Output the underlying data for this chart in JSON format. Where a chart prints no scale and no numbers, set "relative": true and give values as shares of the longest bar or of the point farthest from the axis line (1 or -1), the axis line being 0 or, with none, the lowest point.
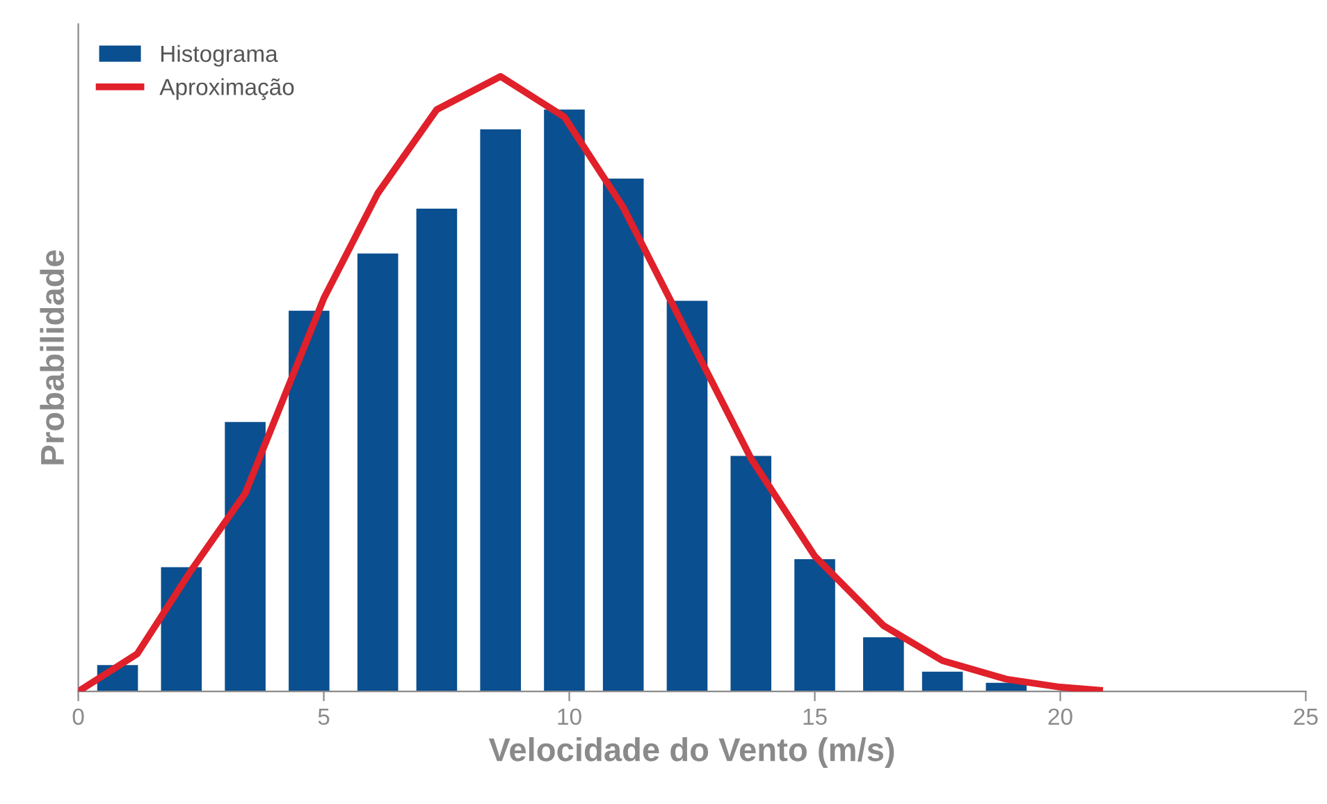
{
  "chart_data": {
    "type": "bar",
    "relative": true,
    "xlabel": "Velocidade do Vento (m/s)",
    "ylabel": "Probabilidade",
    "xlim": [
      0,
      25
    ],
    "xticks": [
      0,
      5,
      10,
      15,
      20,
      25
    ],
    "grid": false,
    "legend": "top left",
    "series": [
      {
        "name": "Histograma",
        "color": "#0a4f8f",
        "x": [
          0.8,
          2.1,
          3.4,
          4.7,
          6.1,
          7.3,
          8.6,
          9.9,
          11.1,
          12.4,
          13.7,
          15.0,
          16.4,
          17.6,
          18.9
        ],
        "values": [
          0.043,
          0.202,
          0.438,
          0.619,
          0.712,
          0.785,
          0.914,
          0.946,
          0.834,
          0.635,
          0.383,
          0.215,
          0.088,
          0.032,
          0.014
        ]
      },
      {
        "name": "Aproximação",
        "type": "line",
        "color": "#e0202a",
        "marker": "none",
        "line_style": "solid",
        "x": [
          0,
          1.2,
          2.3,
          3.4,
          5.0,
          6.1,
          7.3,
          8.6,
          9.9,
          11.1,
          12.4,
          13.7,
          15.0,
          16.4,
          17.6,
          18.9,
          20,
          20.8
        ],
        "values": [
          0,
          0.061,
          0.197,
          0.322,
          0.639,
          0.81,
          0.946,
          1,
          0.934,
          0.787,
          0.583,
          0.379,
          0.22,
          0.107,
          0.05,
          0.02,
          0.007,
          0.002
        ]
      }
    ]
  }
}
